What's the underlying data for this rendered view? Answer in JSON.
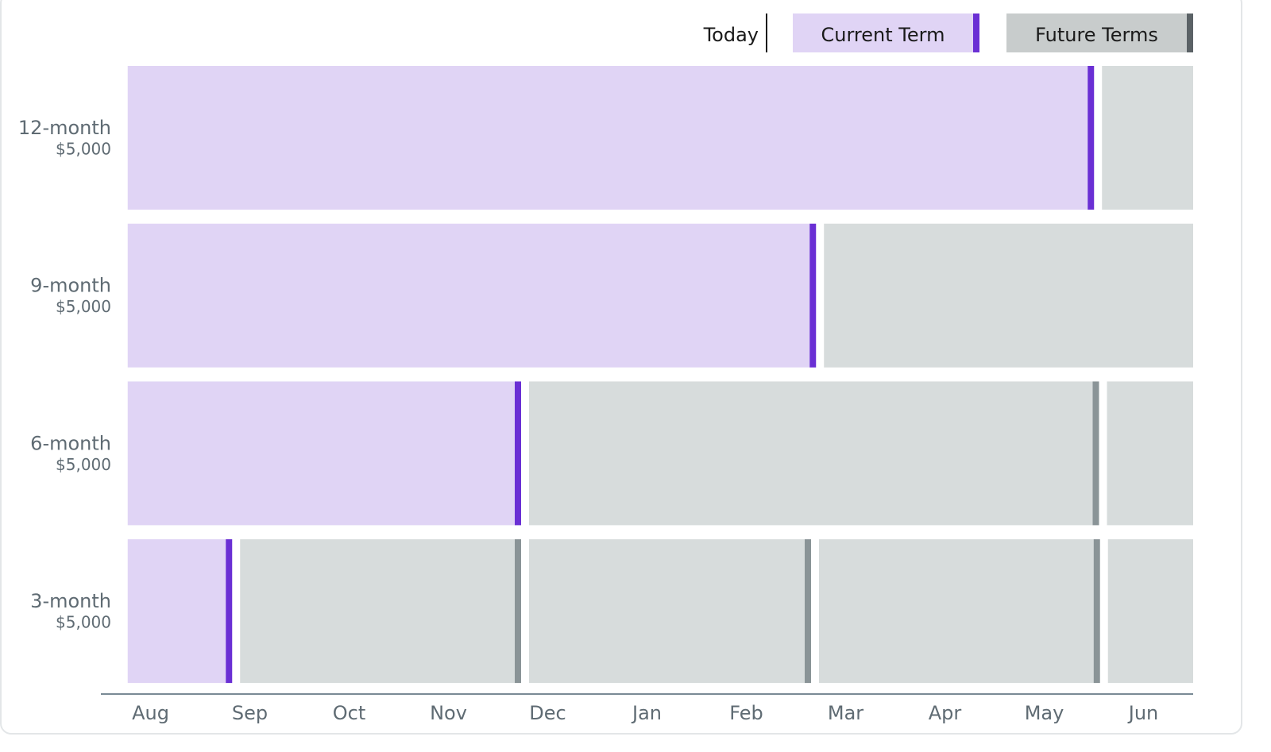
{
  "chart_data": {
    "type": "timeline",
    "today_label": "Today",
    "series": [
      {
        "name": "Current Term",
        "color": "#e0d4f5",
        "marker_color": "#6a2fd4",
        "legend_color": "#e0d4f5",
        "legend_marker_color": "#6a2fd4"
      },
      {
        "name": "Future Terms",
        "color": "#d7dcdc",
        "marker_color": "#8a9497",
        "legend_color": "#c8cccc",
        "legend_marker_color": "#5b6266"
      }
    ],
    "categories": [
      "Aug",
      "Sep",
      "Oct",
      "Nov",
      "Dec",
      "Jan",
      "Feb",
      "Mar",
      "Apr",
      "May",
      "Jun"
    ],
    "xlim": [
      0,
      11
    ],
    "rows": [
      {
        "label": "12-month",
        "amount": "$5,000",
        "start": 0.27,
        "term_ends": [
          9.97
        ]
      },
      {
        "label": "9-month",
        "amount": "$5,000",
        "start": 0.27,
        "term_ends": [
          7.17
        ]
      },
      {
        "label": "6-month",
        "amount": "$5,000",
        "start": 0.27,
        "term_ends": [
          4.2,
          10.02
        ]
      },
      {
        "label": "3-month",
        "amount": "$5,000",
        "start": 0.27,
        "term_ends": [
          1.29,
          4.2,
          7.12,
          10.03
        ]
      }
    ]
  }
}
